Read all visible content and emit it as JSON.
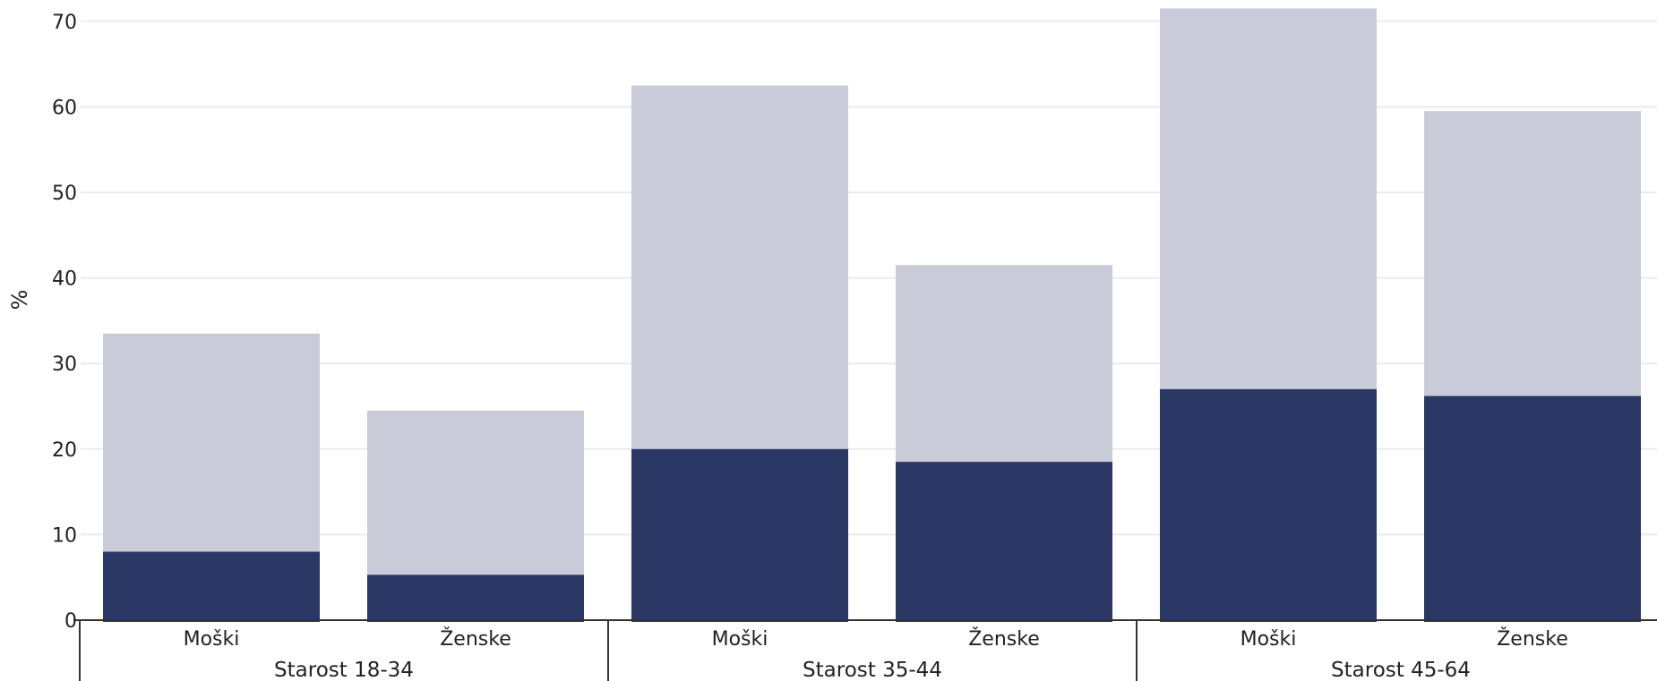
{
  "chart_data": {
    "type": "bar",
    "stacked": false,
    "overlapped": true,
    "ylabel": "%",
    "ylim": [
      0,
      70
    ],
    "yticks": [
      0,
      10,
      20,
      30,
      40,
      50,
      60,
      70
    ],
    "grid": true,
    "groups": [
      "Starost 18-34",
      "Starost 35-44",
      "Starost 45-64"
    ],
    "categories": [
      "Moški",
      "Ženske",
      "Moški",
      "Ženske",
      "Moški",
      "Ženske"
    ],
    "category_group": [
      0,
      0,
      1,
      1,
      2,
      2
    ],
    "series": [
      {
        "values": [
          33.5,
          24.5,
          62.5,
          41.5,
          71.5,
          59.5
        ],
        "color": "#c9cbd8"
      },
      {
        "values": [
          8.0,
          5.3,
          20.0,
          18.5,
          27.0,
          26.2
        ],
        "color": "#2b3765"
      }
    ],
    "colors": {
      "grid": "#ebebeb",
      "axis": "#333333",
      "text": "#222222"
    }
  }
}
